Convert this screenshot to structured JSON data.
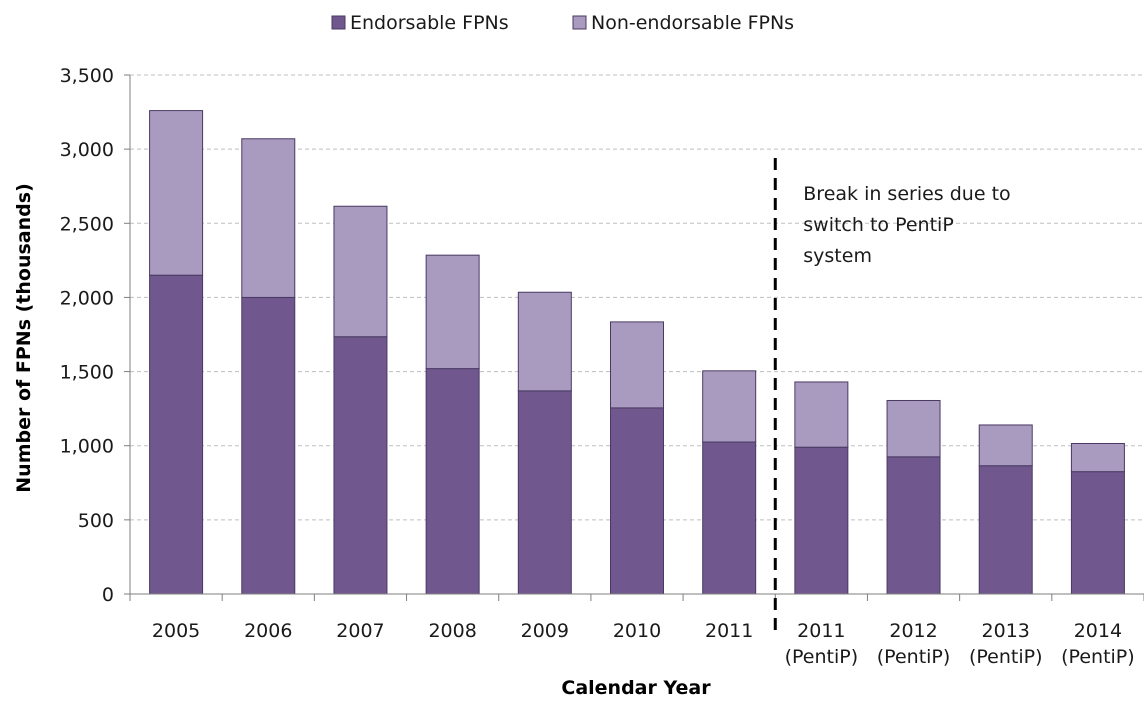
{
  "chart_data": {
    "type": "bar",
    "stacked": true,
    "categories": [
      "2005",
      "2006",
      "2007",
      "2008",
      "2009",
      "2010",
      "2011",
      "2011\n(PentiP)",
      "2012\n(PentiP)",
      "2013\n(PentiP)",
      "2014\n(PentiP)"
    ],
    "series": [
      {
        "name": "Endorsable FPNs",
        "values": [
          2150,
          2000,
          1735,
          1520,
          1370,
          1255,
          1025,
          990,
          925,
          865,
          825
        ]
      },
      {
        "name": "Non-endorsable FPNs",
        "values": [
          1110,
          1070,
          880,
          765,
          665,
          580,
          480,
          440,
          380,
          275,
          190
        ]
      }
    ],
    "xlabel": "Calendar Year",
    "ylabel": "Number of FPNs (thousands)",
    "ylim": [
      0,
      3500
    ],
    "yticks": [
      0,
      500,
      1000,
      1500,
      2000,
      2500,
      3000,
      3500
    ],
    "ytick_labels": [
      "0",
      "500",
      "1,000",
      "1,500",
      "2,000",
      "2,500",
      "3,000",
      "3,500"
    ],
    "grid": true,
    "legend_position": "top-center",
    "annotation": {
      "lines": [
        "Break in series due to",
        "switch to PentiP",
        "system"
      ],
      "break_after_category_index": 6
    },
    "colors": {
      "Endorsable FPNs": "#70588e",
      "Non-endorsable FPNs": "#a99bbf",
      "outline": "#4a3a63",
      "grid": "#bfbfbf"
    }
  }
}
